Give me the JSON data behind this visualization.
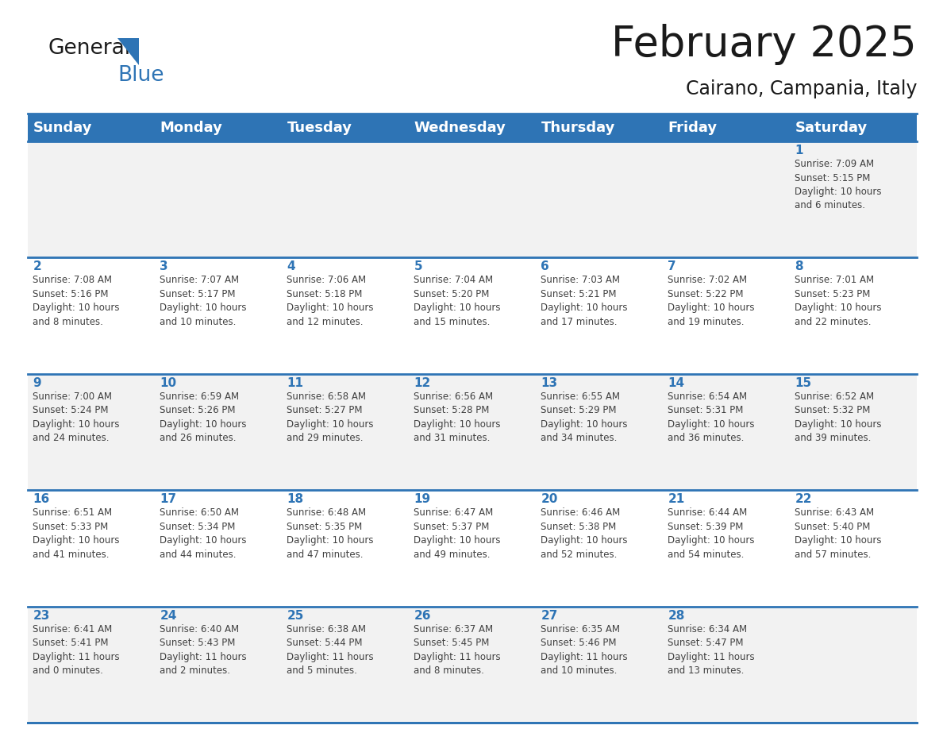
{
  "title": "February 2025",
  "subtitle": "Cairano, Campania, Italy",
  "header_color": "#2e74b5",
  "header_text_color": "#ffffff",
  "background_color": "#ffffff",
  "cell_bg_even": "#f2f2f2",
  "cell_bg_odd": "#ffffff",
  "days_of_week": [
    "Sunday",
    "Monday",
    "Tuesday",
    "Wednesday",
    "Thursday",
    "Friday",
    "Saturday"
  ],
  "title_fontsize": 38,
  "subtitle_fontsize": 17,
  "header_fontsize": 13,
  "day_num_fontsize": 11,
  "cell_text_fontsize": 8.5,
  "logo_general_fontsize": 19,
  "logo_blue_fontsize": 19,
  "weeks": [
    [
      {
        "day": null,
        "sunrise": null,
        "sunset": null,
        "daylight": null
      },
      {
        "day": null,
        "sunrise": null,
        "sunset": null,
        "daylight": null
      },
      {
        "day": null,
        "sunrise": null,
        "sunset": null,
        "daylight": null
      },
      {
        "day": null,
        "sunrise": null,
        "sunset": null,
        "daylight": null
      },
      {
        "day": null,
        "sunrise": null,
        "sunset": null,
        "daylight": null
      },
      {
        "day": null,
        "sunrise": null,
        "sunset": null,
        "daylight": null
      },
      {
        "day": 1,
        "sunrise": "7:09 AM",
        "sunset": "5:15 PM",
        "daylight": "10 hours\nand 6 minutes."
      }
    ],
    [
      {
        "day": 2,
        "sunrise": "7:08 AM",
        "sunset": "5:16 PM",
        "daylight": "10 hours\nand 8 minutes."
      },
      {
        "day": 3,
        "sunrise": "7:07 AM",
        "sunset": "5:17 PM",
        "daylight": "10 hours\nand 10 minutes."
      },
      {
        "day": 4,
        "sunrise": "7:06 AM",
        "sunset": "5:18 PM",
        "daylight": "10 hours\nand 12 minutes."
      },
      {
        "day": 5,
        "sunrise": "7:04 AM",
        "sunset": "5:20 PM",
        "daylight": "10 hours\nand 15 minutes."
      },
      {
        "day": 6,
        "sunrise": "7:03 AM",
        "sunset": "5:21 PM",
        "daylight": "10 hours\nand 17 minutes."
      },
      {
        "day": 7,
        "sunrise": "7:02 AM",
        "sunset": "5:22 PM",
        "daylight": "10 hours\nand 19 minutes."
      },
      {
        "day": 8,
        "sunrise": "7:01 AM",
        "sunset": "5:23 PM",
        "daylight": "10 hours\nand 22 minutes."
      }
    ],
    [
      {
        "day": 9,
        "sunrise": "7:00 AM",
        "sunset": "5:24 PM",
        "daylight": "10 hours\nand 24 minutes."
      },
      {
        "day": 10,
        "sunrise": "6:59 AM",
        "sunset": "5:26 PM",
        "daylight": "10 hours\nand 26 minutes."
      },
      {
        "day": 11,
        "sunrise": "6:58 AM",
        "sunset": "5:27 PM",
        "daylight": "10 hours\nand 29 minutes."
      },
      {
        "day": 12,
        "sunrise": "6:56 AM",
        "sunset": "5:28 PM",
        "daylight": "10 hours\nand 31 minutes."
      },
      {
        "day": 13,
        "sunrise": "6:55 AM",
        "sunset": "5:29 PM",
        "daylight": "10 hours\nand 34 minutes."
      },
      {
        "day": 14,
        "sunrise": "6:54 AM",
        "sunset": "5:31 PM",
        "daylight": "10 hours\nand 36 minutes."
      },
      {
        "day": 15,
        "sunrise": "6:52 AM",
        "sunset": "5:32 PM",
        "daylight": "10 hours\nand 39 minutes."
      }
    ],
    [
      {
        "day": 16,
        "sunrise": "6:51 AM",
        "sunset": "5:33 PM",
        "daylight": "10 hours\nand 41 minutes."
      },
      {
        "day": 17,
        "sunrise": "6:50 AM",
        "sunset": "5:34 PM",
        "daylight": "10 hours\nand 44 minutes."
      },
      {
        "day": 18,
        "sunrise": "6:48 AM",
        "sunset": "5:35 PM",
        "daylight": "10 hours\nand 47 minutes."
      },
      {
        "day": 19,
        "sunrise": "6:47 AM",
        "sunset": "5:37 PM",
        "daylight": "10 hours\nand 49 minutes."
      },
      {
        "day": 20,
        "sunrise": "6:46 AM",
        "sunset": "5:38 PM",
        "daylight": "10 hours\nand 52 minutes."
      },
      {
        "day": 21,
        "sunrise": "6:44 AM",
        "sunset": "5:39 PM",
        "daylight": "10 hours\nand 54 minutes."
      },
      {
        "day": 22,
        "sunrise": "6:43 AM",
        "sunset": "5:40 PM",
        "daylight": "10 hours\nand 57 minutes."
      }
    ],
    [
      {
        "day": 23,
        "sunrise": "6:41 AM",
        "sunset": "5:41 PM",
        "daylight": "11 hours\nand 0 minutes."
      },
      {
        "day": 24,
        "sunrise": "6:40 AM",
        "sunset": "5:43 PM",
        "daylight": "11 hours\nand 2 minutes."
      },
      {
        "day": 25,
        "sunrise": "6:38 AM",
        "sunset": "5:44 PM",
        "daylight": "11 hours\nand 5 minutes."
      },
      {
        "day": 26,
        "sunrise": "6:37 AM",
        "sunset": "5:45 PM",
        "daylight": "11 hours\nand 8 minutes."
      },
      {
        "day": 27,
        "sunrise": "6:35 AM",
        "sunset": "5:46 PM",
        "daylight": "11 hours\nand 10 minutes."
      },
      {
        "day": 28,
        "sunrise": "6:34 AM",
        "sunset": "5:47 PM",
        "daylight": "11 hours\nand 13 minutes."
      },
      {
        "day": null,
        "sunrise": null,
        "sunset": null,
        "daylight": null
      }
    ]
  ]
}
